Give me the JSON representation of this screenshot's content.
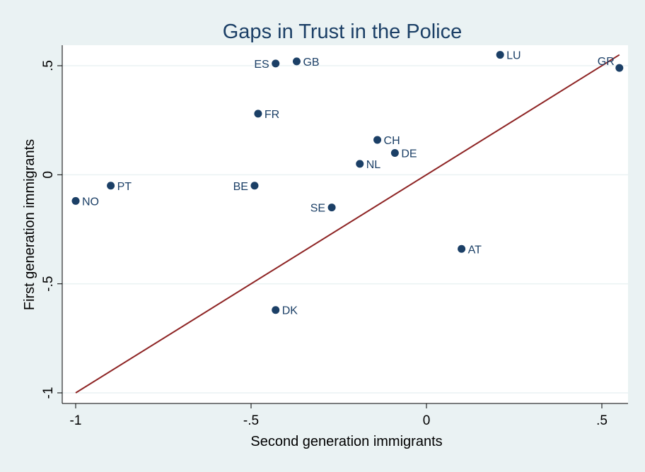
{
  "chart_data": {
    "type": "scatter",
    "title": "Gaps in Trust in the Police",
    "xlabel": "Second generation immigrants",
    "ylabel": "First generation immigrants",
    "xlim": [
      -1.0,
      0.56
    ],
    "ylim": [
      -1.05,
      0.6
    ],
    "x_ticks": [
      {
        "value": -1.0,
        "label": "-1"
      },
      {
        "value": -0.5,
        "label": "-.5"
      },
      {
        "value": 0.0,
        "label": "0"
      },
      {
        "value": 0.5,
        "label": ".5"
      }
    ],
    "y_ticks": [
      {
        "value": -1.0,
        "label": "-1"
      },
      {
        "value": -0.5,
        "label": "-.5"
      },
      {
        "value": 0.0,
        "label": "0"
      },
      {
        "value": 0.5,
        "label": ".5"
      }
    ],
    "grid": {
      "horizontal": true,
      "vertical": false
    },
    "reference_line": {
      "type": "45-degree",
      "from": [
        -1.0,
        -1.0
      ],
      "to": [
        0.55,
        0.55
      ]
    },
    "points": [
      {
        "label": "ES",
        "x": -0.43,
        "y": 0.51,
        "label_side": "left"
      },
      {
        "label": "GB",
        "x": -0.37,
        "y": 0.52,
        "label_side": "right"
      },
      {
        "label": "LU",
        "x": 0.21,
        "y": 0.55,
        "label_side": "right"
      },
      {
        "label": "GR",
        "x": 0.55,
        "y": 0.49,
        "label_side": "left-up"
      },
      {
        "label": "FR",
        "x": -0.48,
        "y": 0.28,
        "label_side": "right"
      },
      {
        "label": "CH",
        "x": -0.14,
        "y": 0.16,
        "label_side": "right"
      },
      {
        "label": "DE",
        "x": -0.09,
        "y": 0.1,
        "label_side": "right"
      },
      {
        "label": "NL",
        "x": -0.19,
        "y": 0.05,
        "label_side": "right"
      },
      {
        "label": "PT",
        "x": -0.9,
        "y": -0.05,
        "label_side": "right"
      },
      {
        "label": "BE",
        "x": -0.49,
        "y": -0.05,
        "label_side": "left"
      },
      {
        "label": "NO",
        "x": -1.0,
        "y": -0.12,
        "label_side": "right"
      },
      {
        "label": "SE",
        "x": -0.27,
        "y": -0.15,
        "label_side": "left"
      },
      {
        "label": "AT",
        "x": 0.1,
        "y": -0.34,
        "label_side": "right"
      },
      {
        "label": "DK",
        "x": -0.43,
        "y": -0.62,
        "label_side": "right"
      }
    ]
  },
  "colors": {
    "background": "#eaf2f3",
    "plot_background": "#ffffff",
    "marker": "#1b3f66",
    "label_text": "#1b3f66",
    "title_text": "#1b3f66",
    "axis_text": "#000000",
    "gridline": "#eaf2f3",
    "reference_line": "#8e2424"
  }
}
